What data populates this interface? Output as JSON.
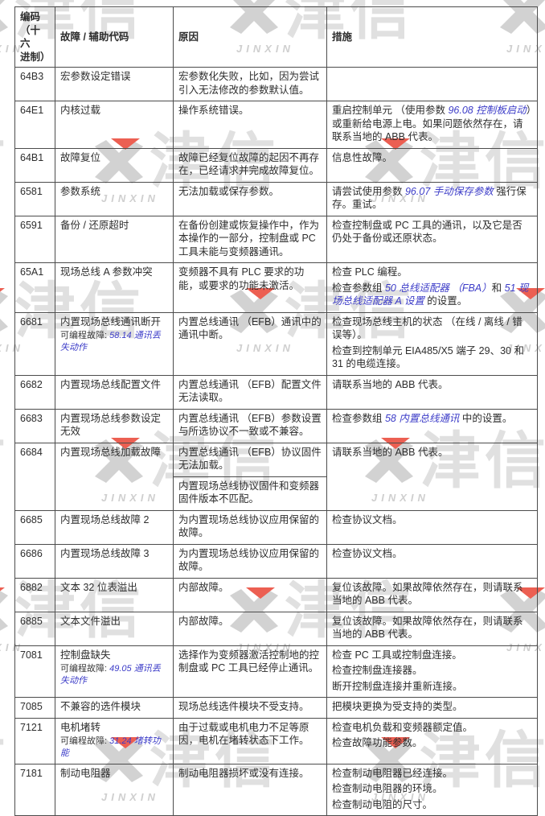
{
  "watermark": {
    "cn": "津信",
    "en": "JINXIN",
    "colors": {
      "red": "#ec5f52",
      "gray": "#d2d2d2"
    }
  },
  "table": {
    "headers": [
      "编码\n（十六\n进制）",
      "故障 / 辅助代码",
      "原因",
      "措施"
    ],
    "rows": [
      {
        "code": "64B3",
        "fault": "宏参数设定错误",
        "cause": [
          [
            {
              "t": "宏参数化失败，比如，因为尝试引入无法修改的参数默认值。"
            }
          ]
        ],
        "action": []
      },
      {
        "code": "64E1",
        "fault": "内核过载",
        "cause": [
          [
            {
              "t": "操作系统错误。"
            }
          ]
        ],
        "action": [
          [
            {
              "t": "重启控制单元 （使用参数 "
            },
            {
              "t": "96.08 控制板启动",
              "link": true
            },
            {
              "t": "）或重新给电源上电。如果问题依然存在，请联系当地的 ABB 代表。"
            }
          ]
        ]
      },
      {
        "code": "64B1",
        "fault": "故障复位",
        "cause": [
          [
            {
              "t": "故障已经复位故障的起因不再存在，已经请求并完成故障复位。"
            }
          ]
        ],
        "action": [
          [
            {
              "t": "信息性故障。"
            }
          ]
        ]
      },
      {
        "code": "6581",
        "fault": "参数系统",
        "cause": [
          [
            {
              "t": "无法加载或保存参数。"
            }
          ]
        ],
        "action": [
          [
            {
              "t": "请尝试使用参数 "
            },
            {
              "t": "96.07 手动保存参数",
              "link": true
            },
            {
              "t": " 强行保存。重试。"
            }
          ]
        ]
      },
      {
        "code": "6591",
        "fault": "备份 / 还原超时",
        "cause": [
          [
            {
              "t": "在备份创建或恢复操作中，作为本操作的一部分，控制盘或 PC 工具未能与变频器通讯。"
            }
          ]
        ],
        "action": [
          [
            {
              "t": "检查控制盘或 PC 工具的通讯，以及它是否仍处于备份或还原状态。"
            }
          ]
        ]
      },
      {
        "code": "65A1",
        "fault": "现场总线 A 参数冲突",
        "cause": [
          [
            {
              "t": "变频器不具有 PLC 要求的功能，或要求的功能未激活。"
            }
          ]
        ],
        "action": [
          [
            {
              "t": "检查 PLC 编程。"
            }
          ],
          [
            {
              "t": "检查参数组 "
            },
            {
              "t": "50 总线适配器 （FBA）",
              "link": true
            },
            {
              "t": "和 "
            },
            {
              "t": "51 现场总线适配器 A 设置",
              "link": true
            },
            {
              "t": " 的设置。"
            }
          ]
        ]
      },
      {
        "code": "6681",
        "fault": "内置现场总线通讯断开",
        "fault_sub": {
          "label": "可编程故障: ",
          "link": "58.14 通讯丢失动作"
        },
        "cause": [
          [
            {
              "t": "内置总线通讯 （EFB）通讯中的通讯中断。"
            }
          ]
        ],
        "action": [
          [
            {
              "t": "检查现场总线主机的状态 （在线 / 离线 / 错误等）。"
            }
          ],
          [
            {
              "t": "检查到控制单元 EIA485/X5 端子 29、30 和 31 的电缆连接。"
            }
          ]
        ]
      },
      {
        "code": "6682",
        "fault": "内置现场总线配置文件",
        "cause": [
          [
            {
              "t": "内置总线通讯 （EFB）配置文件无法读取。"
            }
          ]
        ],
        "action": [
          [
            {
              "t": "请联系当地的 ABB 代表。"
            }
          ]
        ]
      },
      {
        "code": "6683",
        "fault": "内置现场总线参数设定无效",
        "cause": [
          [
            {
              "t": "内置总线通讯 （EFB）参数设置与所选协议不一致或不兼容。"
            }
          ]
        ],
        "action": [
          [
            {
              "t": "检查参数组 "
            },
            {
              "t": "58 内置总线通讯",
              "link": true
            },
            {
              "t": " 中的设置。"
            }
          ]
        ]
      },
      {
        "code": "6684",
        "fault": "内置现场总线加载故障",
        "cause_divided": true,
        "cause": [
          [
            {
              "t": "内置总线通讯 （EFB）协议固件无法加载。"
            }
          ],
          [
            {
              "t": "内置现场总线协议固件和变频器固件版本不匹配。"
            }
          ]
        ],
        "action": [
          [
            {
              "t": "请联系当地的 ABB 代表。"
            }
          ]
        ]
      },
      {
        "code": "6685",
        "fault": "内置现场总线故障 2",
        "cause": [
          [
            {
              "t": "为内置现场总线协议应用保留的故障。"
            }
          ]
        ],
        "action": [
          [
            {
              "t": "检查协议文档。"
            }
          ]
        ]
      },
      {
        "code": "6686",
        "fault": "内置现场总线故障 3",
        "cause": [
          [
            {
              "t": "为内置现场总线协议应用保留的故障。"
            }
          ]
        ],
        "action": [
          [
            {
              "t": "检查协议文档。"
            }
          ]
        ]
      },
      {
        "code": "6882",
        "fault": "文本 32 位表溢出",
        "cause": [
          [
            {
              "t": "内部故障。"
            }
          ]
        ],
        "action": [
          [
            {
              "t": "复位该故障。如果故障依然存在，则请联系当地的 ABB 代表。"
            }
          ]
        ]
      },
      {
        "code": "6885",
        "fault": "文本文件溢出",
        "cause": [
          [
            {
              "t": "内部故障。"
            }
          ]
        ],
        "action": [
          [
            {
              "t": "复位该故障。如果故障依然存在，则请联系当地的 ABB 代表。"
            }
          ]
        ]
      },
      {
        "code": "7081",
        "fault": "控制盘缺失",
        "fault_sub": {
          "label": "可编程故障: ",
          "link": "49.05 通讯丢失动作"
        },
        "cause": [
          [
            {
              "t": "选择作为变频器激活控制地的控制盘或 PC 工具已经停止通讯。"
            }
          ]
        ],
        "action": [
          [
            {
              "t": "检查 PC 工具或控制盘连接。"
            }
          ],
          [
            {
              "t": "检查控制盘连接器。"
            }
          ],
          [
            {
              "t": "断开控制盘连接并重新连接。"
            }
          ]
        ]
      },
      {
        "code": "7085",
        "fault": "不兼容的选件模块",
        "cause": [
          [
            {
              "t": "现场总线选件模块不受支持。"
            }
          ]
        ],
        "action": [
          [
            {
              "t": "把模块更换为受支持的类型。"
            }
          ]
        ]
      },
      {
        "code": "7121",
        "fault": "电机堵转",
        "fault_sub": {
          "label": "可编程故障: ",
          "link": "31.24 堵转功能"
        },
        "cause": [
          [
            {
              "t": "由于过载或电机电力不足等原因，电机在堵转状态下工作。"
            }
          ]
        ],
        "action": [
          [
            {
              "t": "检查电机负载和变频器额定值。"
            }
          ],
          [
            {
              "t": "检查故障功能参数。"
            }
          ]
        ]
      },
      {
        "code": "7181",
        "fault": "制动电阻器",
        "cause": [
          [
            {
              "t": "制动电阻器损坏或没有连接。"
            }
          ]
        ],
        "action": [
          [
            {
              "t": "检查制动电阻器已经连接。"
            }
          ],
          [
            {
              "t": "检查制动电阻器的环境。"
            }
          ],
          [
            {
              "t": "检查制动电阻的尺寸。"
            }
          ]
        ]
      }
    ]
  }
}
